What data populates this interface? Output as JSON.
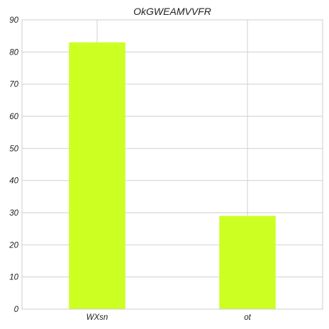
{
  "chart_data": {
    "type": "bar",
    "title": "OkGWEAMVVFR",
    "xlabel": "",
    "ylabel": "",
    "categories": [
      "WXsn",
      "ot"
    ],
    "values": [
      83,
      29
    ],
    "ylim": [
      0,
      90
    ],
    "yticks": [
      0,
      10,
      20,
      30,
      40,
      50,
      60,
      70,
      80,
      90
    ],
    "grid": true,
    "bar_color": "#ccff22",
    "grid_color": "#cccccc"
  }
}
